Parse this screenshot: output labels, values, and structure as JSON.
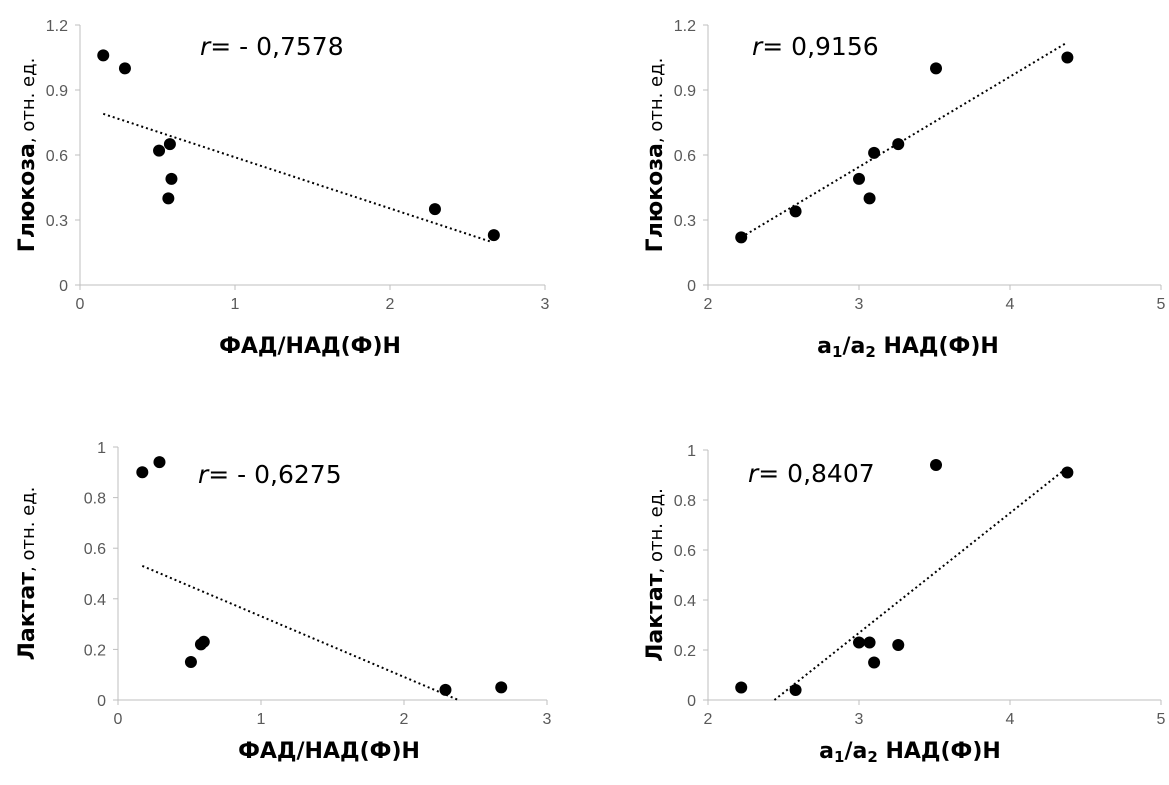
{
  "chart_data": [
    {
      "type": "scatter",
      "xlabel": "ФАД/НАД(Ф)Н",
      "ylabel_main": "Глюкоза",
      "ylabel_unit": ", отн. ед.",
      "r_prefix": "r",
      "r_text": "= - 0,7578",
      "xlim": [
        0,
        3
      ],
      "ylim": [
        0,
        1.2
      ],
      "xticks": [
        "0",
        "1",
        "2",
        "3"
      ],
      "yticks": [
        "0",
        "0.3",
        "0.6",
        "0.9",
        "1.2"
      ],
      "points": [
        [
          0.15,
          1.06
        ],
        [
          0.29,
          1.0
        ],
        [
          0.51,
          0.62
        ],
        [
          0.58,
          0.65
        ],
        [
          0.59,
          0.49
        ],
        [
          0.57,
          0.4
        ],
        [
          2.29,
          0.35
        ],
        [
          2.67,
          0.23
        ]
      ],
      "trend": [
        [
          0.15,
          0.79
        ],
        [
          2.65,
          0.2
        ]
      ]
    },
    {
      "type": "scatter",
      "xlabel_main": "a",
      "xlabel_sub1": "1",
      "xlabel_slash": "/a",
      "xlabel_sub2": "2",
      "xlabel_tail": " НАД(Ф)Н",
      "ylabel_main": "Глюкоза",
      "ylabel_unit": ", отн. ед.",
      "r_prefix": "r",
      "r_text": "= 0,9156",
      "xlim": [
        2,
        5
      ],
      "ylim": [
        0,
        1.2
      ],
      "xticks": [
        "2",
        "3",
        "4",
        "5"
      ],
      "yticks": [
        "0",
        "0.3",
        "0.6",
        "0.9",
        "1.2"
      ],
      "points": [
        [
          2.22,
          0.22
        ],
        [
          2.58,
          0.34
        ],
        [
          3.0,
          0.49
        ],
        [
          3.07,
          0.4
        ],
        [
          3.1,
          0.61
        ],
        [
          3.26,
          0.65
        ],
        [
          3.51,
          1.0
        ],
        [
          4.38,
          1.05
        ]
      ],
      "trend": [
        [
          2.22,
          0.22
        ],
        [
          4.38,
          1.12
        ]
      ]
    },
    {
      "type": "scatter",
      "xlabel": "ФАД/НАД(Ф)Н",
      "ylabel_main": "Лактат",
      "ylabel_unit": ", отн. ед.",
      "r_prefix": "r",
      "r_text": "= - 0,6275",
      "xlim": [
        0,
        3
      ],
      "ylim": [
        0,
        1
      ],
      "xticks": [
        "0",
        "1",
        "2",
        "3"
      ],
      "yticks": [
        "0",
        "0.2",
        "0.4",
        "0.6",
        "0.8",
        "1"
      ],
      "points": [
        [
          0.17,
          0.9
        ],
        [
          0.29,
          0.94
        ],
        [
          0.51,
          0.15
        ],
        [
          0.58,
          0.22
        ],
        [
          0.6,
          0.23
        ],
        [
          2.29,
          0.04
        ],
        [
          2.68,
          0.05
        ]
      ],
      "trend": [
        [
          0.17,
          0.53
        ],
        [
          2.38,
          0.0
        ]
      ]
    },
    {
      "type": "scatter",
      "xlabel_main": "a",
      "xlabel_sub1": "1",
      "xlabel_slash": "/a",
      "xlabel_sub2": "2",
      "xlabel_tail": " НАД(Ф)Н",
      "ylabel_main": "Лактат",
      "ylabel_unit": ", отн. ед.",
      "r_prefix": "r",
      "r_text": "= 0,8407",
      "xlim": [
        2,
        5
      ],
      "ylim": [
        0,
        1
      ],
      "xticks": [
        "2",
        "3",
        "4",
        "5"
      ],
      "yticks": [
        "0",
        "0.2",
        "0.4",
        "0.6",
        "0.8",
        "1"
      ],
      "points": [
        [
          2.22,
          0.05
        ],
        [
          2.58,
          0.04
        ],
        [
          3.0,
          0.23
        ],
        [
          3.07,
          0.23
        ],
        [
          3.1,
          0.15
        ],
        [
          3.26,
          0.22
        ],
        [
          3.51,
          0.94
        ],
        [
          4.38,
          0.91
        ]
      ],
      "trend": [
        [
          2.44,
          0.0
        ],
        [
          4.38,
          0.93
        ]
      ]
    }
  ]
}
